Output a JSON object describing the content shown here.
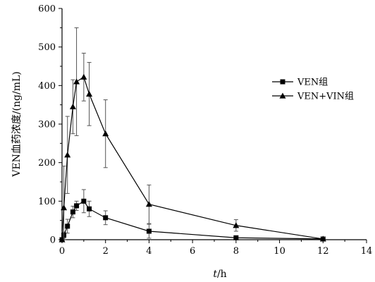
{
  "chart_data": {
    "type": "line",
    "title": "",
    "xlabel": "t/h",
    "xlabel_italic": "t",
    "xlabel_unit": "/h",
    "ylabel": "VEN血药浓度/(ng/mL)",
    "xlim": [
      0,
      14
    ],
    "ylim": [
      0,
      600
    ],
    "xticks": [
      0,
      2,
      4,
      6,
      8,
      10,
      12,
      14
    ],
    "yticks": [
      0,
      100,
      200,
      300,
      400,
      500,
      600
    ],
    "grid": false,
    "legend_position": "right",
    "series": [
      {
        "name": "VEN组",
        "marker": "square",
        "x": [
          0,
          0.083,
          0.25,
          0.5,
          0.667,
          1,
          1.25,
          2,
          4,
          8,
          12
        ],
        "y": [
          0,
          12,
          35,
          72,
          88,
          100,
          80,
          57,
          22,
          5,
          2
        ],
        "err": [
          0,
          8,
          18,
          15,
          12,
          30,
          20,
          18,
          18,
          5,
          3
        ]
      },
      {
        "name": "VEN+VIN组",
        "marker": "triangle",
        "x": [
          0,
          0.083,
          0.25,
          0.5,
          0.667,
          1,
          1.25,
          2,
          4,
          8,
          12
        ],
        "y": [
          0,
          83,
          220,
          345,
          410,
          422,
          378,
          275,
          92,
          37,
          2
        ],
        "err": [
          0,
          108,
          100,
          70,
          140,
          62,
          82,
          88,
          50,
          15,
          5
        ]
      }
    ]
  }
}
